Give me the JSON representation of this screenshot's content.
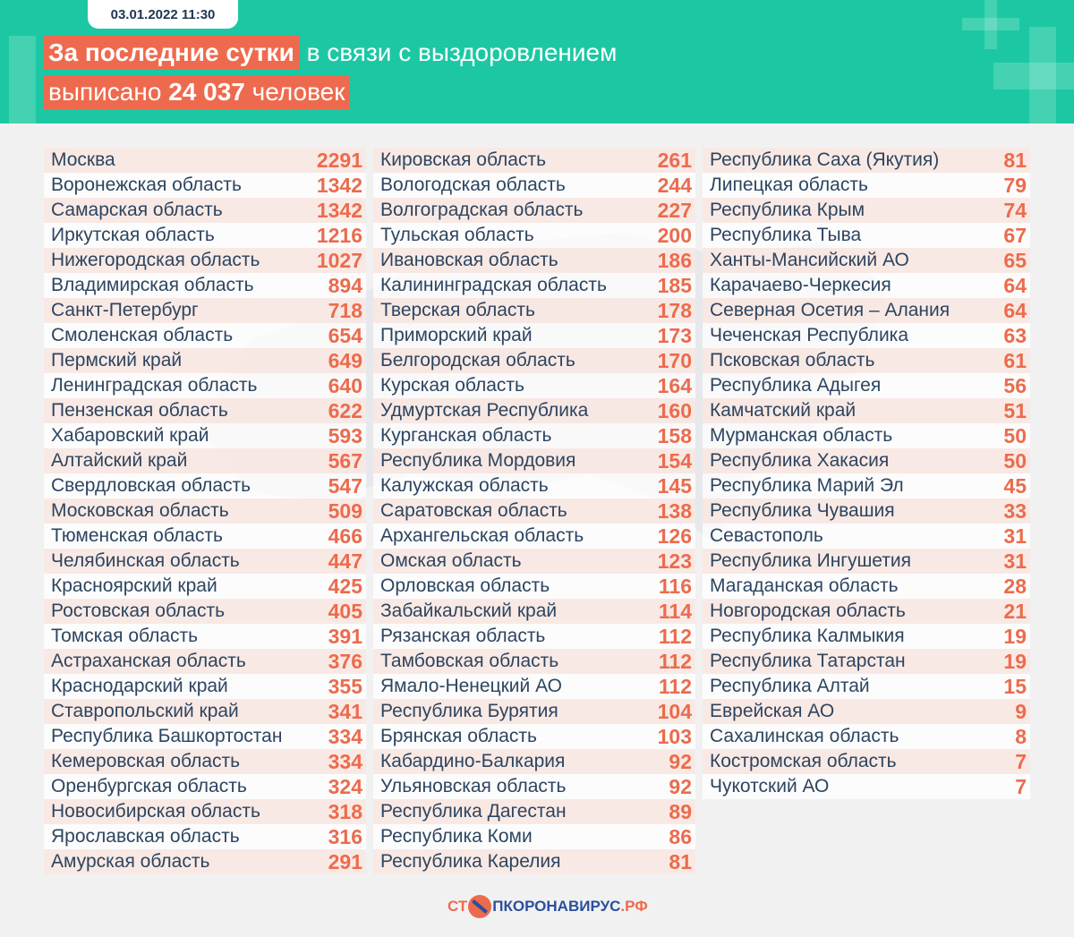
{
  "header": {
    "date": "03.01.2022 11:30",
    "line1_highlight": "За последние сутки",
    "line1_rest": "в связи с выздоровлением",
    "line2_pre": "выписано",
    "line2_number": "24 037",
    "line2_post": "человек"
  },
  "colors": {
    "header": "#1cc8a3",
    "accent": "#ec6b4d",
    "text": "#2d4560"
  },
  "columns": [
    [
      [
        "Москва",
        "2291"
      ],
      [
        "Воронежская область",
        "1342"
      ],
      [
        "Самарская область",
        "1342"
      ],
      [
        "Иркутская область",
        "1216"
      ],
      [
        "Нижегородская область",
        "1027"
      ],
      [
        "Владимирская область",
        "894"
      ],
      [
        "Санкт-Петербург",
        "718"
      ],
      [
        "Смоленская область",
        "654"
      ],
      [
        "Пермский край",
        "649"
      ],
      [
        "Ленинградская область",
        "640"
      ],
      [
        "Пензенская область",
        "622"
      ],
      [
        "Хабаровский край",
        "593"
      ],
      [
        "Алтайский край",
        "567"
      ],
      [
        "Свердловская область",
        "547"
      ],
      [
        "Московская область",
        "509"
      ],
      [
        "Тюменская область",
        "466"
      ],
      [
        "Челябинская область",
        "447"
      ],
      [
        "Красноярский край",
        "425"
      ],
      [
        "Ростовская область",
        "405"
      ],
      [
        "Томская область",
        "391"
      ],
      [
        "Астраханская область",
        "376"
      ],
      [
        "Краснодарский край",
        "355"
      ],
      [
        "Ставропольский край",
        "341"
      ],
      [
        "Республика Башкортостан",
        "334"
      ],
      [
        "Кемеровская область",
        "334"
      ],
      [
        "Оренбургская область",
        "324"
      ],
      [
        "Новосибирская область",
        "318"
      ],
      [
        "Ярославская область",
        "316"
      ],
      [
        "Амурская область",
        "291"
      ]
    ],
    [
      [
        "Кировская область",
        "261"
      ],
      [
        "Вологодская область",
        "244"
      ],
      [
        "Волгоградская область",
        "227"
      ],
      [
        "Тульская область",
        "200"
      ],
      [
        "Ивановская область",
        "186"
      ],
      [
        "Калининградская область",
        "185"
      ],
      [
        "Тверская область",
        "178"
      ],
      [
        "Приморский край",
        "173"
      ],
      [
        "Белгородская область",
        "170"
      ],
      [
        "Курская область",
        "164"
      ],
      [
        "Удмуртская Республика",
        "160"
      ],
      [
        "Курганская область",
        "158"
      ],
      [
        "Республика Мордовия",
        "154"
      ],
      [
        "Калужская область",
        "145"
      ],
      [
        "Саратовская область",
        "138"
      ],
      [
        "Архангельская область",
        "126"
      ],
      [
        "Омская область",
        "123"
      ],
      [
        "Орловская область",
        "116"
      ],
      [
        "Забайкальский край",
        "114"
      ],
      [
        "Рязанская область",
        "112"
      ],
      [
        "Тамбовская область",
        "112"
      ],
      [
        "Ямало-Ненецкий АО",
        "112"
      ],
      [
        "Республика Бурятия",
        "104"
      ],
      [
        "Брянская область",
        "103"
      ],
      [
        "Кабардино-Балкария",
        "92"
      ],
      [
        "Ульяновская область",
        "92"
      ],
      [
        "Республика Дагестан",
        "89"
      ],
      [
        "Республика Коми",
        "86"
      ],
      [
        "Республика Карелия",
        "81"
      ]
    ],
    [
      [
        "Республика Саха (Якутия)",
        "81"
      ],
      [
        "Липецкая область",
        "79"
      ],
      [
        "Республика Крым",
        "74"
      ],
      [
        "Республика Тыва",
        "67"
      ],
      [
        "Ханты-Мансийский АО",
        "65"
      ],
      [
        "Карачаево-Черкесия",
        "64"
      ],
      [
        "Северная Осетия – Алания",
        "64"
      ],
      [
        "Чеченская Республика",
        "63"
      ],
      [
        "Псковская область",
        "61"
      ],
      [
        "Республика Адыгея",
        "56"
      ],
      [
        "Камчатский край",
        "51"
      ],
      [
        "Мурманская область",
        "50"
      ],
      [
        "Республика Хакасия",
        "50"
      ],
      [
        "Республика Марий Эл",
        "45"
      ],
      [
        "Республика Чувашия",
        "33"
      ],
      [
        "Севастополь",
        "31"
      ],
      [
        "Республика Ингушетия",
        "31"
      ],
      [
        "Магаданская область",
        "28"
      ],
      [
        "Новгородская область",
        "21"
      ],
      [
        "Республика Калмыкия",
        "19"
      ],
      [
        "Республика Татарстан",
        "19"
      ],
      [
        "Республика Алтай",
        "15"
      ],
      [
        "Еврейская АО",
        "9"
      ],
      [
        "Сахалинская область",
        "8"
      ],
      [
        "Костромская область",
        "7"
      ],
      [
        "Чукотский АО",
        "7"
      ]
    ]
  ],
  "footer": {
    "logo_text": "СТОПКОРОНАВИРУС.РФ",
    "logo_part1": "СТ",
    "logo_part2": "ПКОРОНАВИРУС",
    "logo_part3": ".РФ"
  }
}
